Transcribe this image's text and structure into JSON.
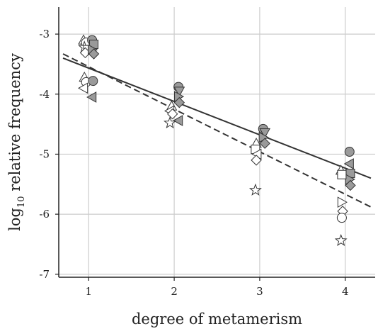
{
  "chart_data": {
    "type": "scatter",
    "title": "",
    "xlabel": "degree of metamerism",
    "ylabel": {
      "prefix": "log",
      "subscript": "10",
      "suffix": " relative frequency"
    },
    "xlim": [
      0.65,
      4.35
    ],
    "ylim": [
      -7.05,
      -2.55
    ],
    "xticks": [
      1,
      2,
      3,
      4
    ],
    "yticks": [
      -7,
      -6,
      -5,
      -4,
      -3
    ],
    "grid": true,
    "legend": "none",
    "colors": {
      "filled": "#9a9a9a",
      "open": "#ffffff",
      "stroke": "#333333",
      "grid": "#cccccc",
      "fit_line": "#333333"
    },
    "points": [
      {
        "x": 0.94,
        "y": -3.1,
        "marker": "triangle-up",
        "fill": "open"
      },
      {
        "x": 0.97,
        "y": -3.14,
        "marker": "circle",
        "fill": "open"
      },
      {
        "x": 0.95,
        "y": -3.22,
        "marker": "star",
        "fill": "open"
      },
      {
        "x": 0.99,
        "y": -3.26,
        "marker": "square",
        "fill": "open"
      },
      {
        "x": 0.96,
        "y": -3.31,
        "marker": "diamond",
        "fill": "open"
      },
      {
        "x": 1.04,
        "y": -3.1,
        "marker": "circle",
        "fill": "filled"
      },
      {
        "x": 1.06,
        "y": -3.17,
        "marker": "square",
        "fill": "filled"
      },
      {
        "x": 1.04,
        "y": -3.26,
        "marker": "triangle-right",
        "fill": "filled"
      },
      {
        "x": 1.06,
        "y": -3.33,
        "marker": "diamond",
        "fill": "filled"
      },
      {
        "x": 0.95,
        "y": -3.72,
        "marker": "triangle-up",
        "fill": "open"
      },
      {
        "x": 0.97,
        "y": -3.8,
        "marker": "circle",
        "fill": "open"
      },
      {
        "x": 0.94,
        "y": -3.9,
        "marker": "triangle-left",
        "fill": "open"
      },
      {
        "x": 1.05,
        "y": -3.78,
        "marker": "circle",
        "fill": "filled"
      },
      {
        "x": 1.04,
        "y": -4.05,
        "marker": "triangle-left",
        "fill": "filled"
      },
      {
        "x": 2.05,
        "y": -3.88,
        "marker": "circle",
        "fill": "filled"
      },
      {
        "x": 2.06,
        "y": -3.95,
        "marker": "triangle-down",
        "fill": "filled"
      },
      {
        "x": 2.05,
        "y": -4.04,
        "marker": "triangle-right",
        "fill": "filled"
      },
      {
        "x": 2.06,
        "y": -4.14,
        "marker": "diamond",
        "fill": "filled"
      },
      {
        "x": 1.97,
        "y": -4.2,
        "marker": "triangle-up",
        "fill": "open"
      },
      {
        "x": 1.95,
        "y": -4.28,
        "marker": "triangle-left",
        "fill": "open"
      },
      {
        "x": 1.98,
        "y": -4.33,
        "marker": "diamond",
        "fill": "open"
      },
      {
        "x": 2.05,
        "y": -4.44,
        "marker": "triangle-left",
        "fill": "filled"
      },
      {
        "x": 1.95,
        "y": -4.48,
        "marker": "star",
        "fill": "open"
      },
      {
        "x": 3.04,
        "y": -4.58,
        "marker": "circle",
        "fill": "filled"
      },
      {
        "x": 3.06,
        "y": -4.64,
        "marker": "triangle-down",
        "fill": "filled"
      },
      {
        "x": 3.04,
        "y": -4.72,
        "marker": "triangle-right",
        "fill": "filled"
      },
      {
        "x": 3.06,
        "y": -4.82,
        "marker": "diamond",
        "fill": "filled"
      },
      {
        "x": 2.96,
        "y": -4.82,
        "marker": "triangle-up",
        "fill": "open"
      },
      {
        "x": 2.95,
        "y": -4.92,
        "marker": "square",
        "fill": "open"
      },
      {
        "x": 2.97,
        "y": -5.0,
        "marker": "triangle-left",
        "fill": "open"
      },
      {
        "x": 2.96,
        "y": -5.1,
        "marker": "diamond",
        "fill": "open"
      },
      {
        "x": 2.95,
        "y": -5.6,
        "marker": "star",
        "fill": "open"
      },
      {
        "x": 4.05,
        "y": -4.96,
        "marker": "circle",
        "fill": "filled"
      },
      {
        "x": 4.05,
        "y": -5.16,
        "marker": "triangle-left",
        "fill": "filled"
      },
      {
        "x": 4.06,
        "y": -5.32,
        "marker": "square",
        "fill": "filled"
      },
      {
        "x": 4.05,
        "y": -5.42,
        "marker": "triangle-right",
        "fill": "filled"
      },
      {
        "x": 4.06,
        "y": -5.52,
        "marker": "diamond",
        "fill": "filled"
      },
      {
        "x": 3.95,
        "y": -5.27,
        "marker": "triangle-up",
        "fill": "open"
      },
      {
        "x": 3.96,
        "y": -5.34,
        "marker": "square",
        "fill": "open"
      },
      {
        "x": 3.96,
        "y": -5.8,
        "marker": "triangle-right",
        "fill": "open"
      },
      {
        "x": 3.97,
        "y": -5.95,
        "marker": "diamond",
        "fill": "open"
      },
      {
        "x": 3.96,
        "y": -6.06,
        "marker": "circle",
        "fill": "open"
      },
      {
        "x": 3.95,
        "y": -6.44,
        "marker": "star",
        "fill": "open"
      }
    ],
    "fit_lines": [
      {
        "style": "solid",
        "x": [
          0.7,
          4.3
        ],
        "y": [
          -3.4,
          -5.4
        ]
      },
      {
        "style": "dashed",
        "x": [
          0.7,
          4.3
        ],
        "y": [
          -3.33,
          -5.88
        ]
      }
    ]
  }
}
